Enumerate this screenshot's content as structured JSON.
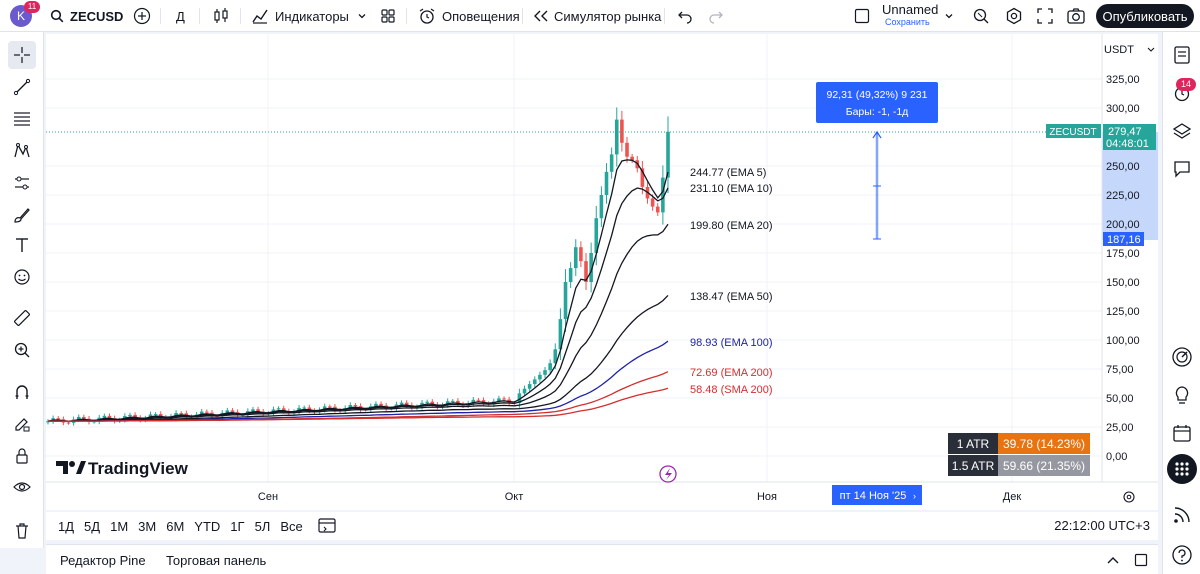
{
  "header": {
    "avatar_letter": "K",
    "avatar_badge": "11",
    "symbol": "ZECUSD",
    "interval": "Д",
    "indicators_label": "Индикаторы",
    "alerts_label": "Оповещения",
    "replay_label": "Симулятор рынка",
    "layout_name": "Unnamed",
    "layout_save": "Сохранить",
    "publish_label": "Опубликовать"
  },
  "right_sidebar": {
    "notifications_badge": "14"
  },
  "range_bar": {
    "ranges": [
      "1Д",
      "5Д",
      "1М",
      "3М",
      "6М",
      "YTD",
      "1Г",
      "5Л",
      "Все"
    ],
    "clock": "22:12:00 UTC+3"
  },
  "bottom_panel": {
    "tabs": [
      "Редактор Pine",
      "Торговая панель"
    ]
  },
  "chart": {
    "currency": "USDT",
    "symbol_tag": "ZECUSDT",
    "last_price": "279,47",
    "countdown": "04:48:01",
    "range_low_tag": "187,16",
    "price_ticks": [
      "325,00",
      "300,00",
      "250,00",
      "225,00",
      "200,00",
      "175,00",
      "150,00",
      "125,00",
      "100,00",
      "75,00",
      "50,00",
      "25,00",
      "0,00"
    ],
    "time_ticks": [
      "Сен",
      "Окт",
      "Ноя",
      "Дек"
    ],
    "crosshair_date": "пт 14 Ноя '25",
    "measure_line1": "92,31 (49,32%) 9 231",
    "measure_line2": "Бары: -1, -1д",
    "logo_text": "TradingView",
    "atr": [
      {
        "label": "1 ATR",
        "value": "39.78 (14.23%)",
        "color": "#e8730f"
      },
      {
        "label": "1.5 ATR",
        "value": "59.66 (21.35%)",
        "color": "#9598a1"
      }
    ],
    "ma_labels": [
      {
        "text": "244.77 (EMA 5)",
        "color": "#131722"
      },
      {
        "text": "231.10 (EMA 10)",
        "color": "#131722"
      },
      {
        "text": "199.80 (EMA 20)",
        "color": "#131722"
      },
      {
        "text": "138.47 (EMA 50)",
        "color": "#131722"
      },
      {
        "text": "98.93 (EMA 100)",
        "color": "#1e22aa"
      },
      {
        "text": "72.69 (EMA 200)",
        "color": "#d32f2f"
      },
      {
        "text": "58.48 (SMA 200)",
        "color": "#d32f2f"
      }
    ]
  },
  "chart_data": {
    "type": "candlestick",
    "symbol": "ZECUSDT",
    "y_axis": [
      0,
      325
    ],
    "x_ticks": [
      "Сен",
      "Окт",
      "Ноя",
      "Дек"
    ],
    "recent_closes": [
      74,
      80,
      92,
      118,
      150,
      162,
      180,
      168,
      150,
      175,
      205,
      225,
      245,
      260,
      290,
      270,
      258,
      255,
      248,
      232,
      222,
      215,
      210,
      240,
      279.47
    ],
    "indicators": {
      "EMA 5": 244.77,
      "EMA 10": 231.1,
      "EMA 20": 199.8,
      "EMA 50": 138.47,
      "EMA 100": 98.93,
      "EMA 200": 72.69,
      "SMA 200": 58.48
    },
    "measure": {
      "from": 187.16,
      "to": 279.47,
      "change": 92.31,
      "change_pct": 49.32
    }
  }
}
